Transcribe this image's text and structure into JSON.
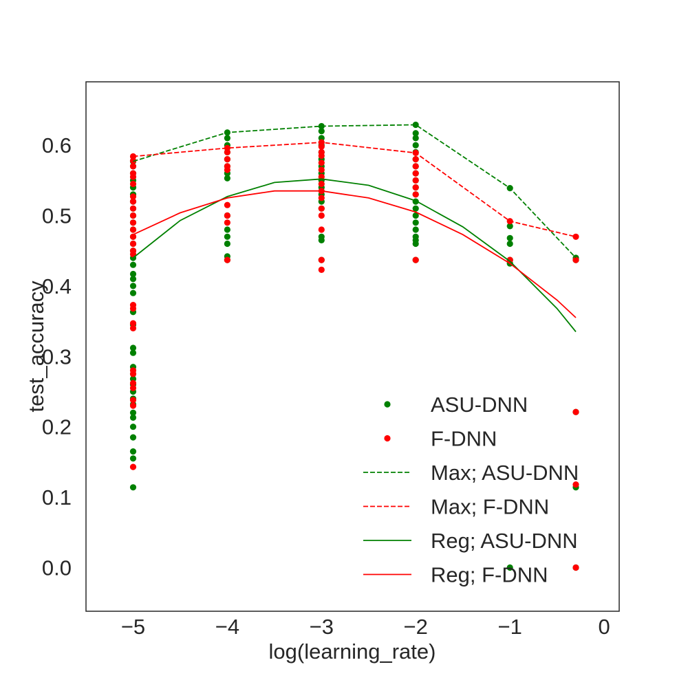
{
  "chart_data": {
    "type": "scatter",
    "title": "",
    "xlabel": "log(learning_rate)",
    "ylabel": "test_accuracy",
    "xlim": [
      -5.5,
      0.16
    ],
    "ylim": [
      -0.062,
      0.69
    ],
    "grid": false,
    "x_ticks": [
      -5,
      -4,
      -3,
      -2,
      -1,
      0
    ],
    "x_tick_labels": [
      "−5",
      "−4",
      "−3",
      "−2",
      "−1",
      "0"
    ],
    "y_ticks": [
      0.0,
      0.1,
      0.2,
      0.3,
      0.4,
      0.5,
      0.6
    ],
    "y_tick_labels": [
      "0.0",
      "0.1",
      "0.2",
      "0.3",
      "0.4",
      "0.5",
      "0.6"
    ],
    "legend_position": "lower-right",
    "legend": [
      {
        "label": "ASU-DNN",
        "kind": "marker",
        "color": "#008000"
      },
      {
        "label": "F-DNN",
        "kind": "marker",
        "color": "#ff0000"
      },
      {
        "label": "Max; ASU-DNN",
        "kind": "dashed",
        "color": "#008000"
      },
      {
        "label": "Max; F-DNN",
        "kind": "dashed",
        "color": "#ff0000"
      },
      {
        "label": "Reg; ASU-DNN",
        "kind": "solid",
        "color": "#008000"
      },
      {
        "label": "Reg; F-DNN",
        "kind": "solid",
        "color": "#ff0000"
      }
    ],
    "series": [
      {
        "name": "ASU-DNN",
        "type": "scatter",
        "color": "#008000",
        "points": [
          [
            -5,
            0.577
          ],
          [
            -5,
            0.57
          ],
          [
            -5,
            0.56
          ],
          [
            -5,
            0.55
          ],
          [
            -5,
            0.54
          ],
          [
            -5,
            0.53
          ],
          [
            -5,
            0.52
          ],
          [
            -5,
            0.51
          ],
          [
            -5,
            0.5
          ],
          [
            -5,
            0.49
          ],
          [
            -5,
            0.48
          ],
          [
            -5,
            0.47
          ],
          [
            -5,
            0.46
          ],
          [
            -5,
            0.45
          ],
          [
            -5,
            0.44
          ],
          [
            -5,
            0.43
          ],
          [
            -5,
            0.417
          ],
          [
            -5,
            0.41
          ],
          [
            -5,
            0.4
          ],
          [
            -5,
            0.39
          ],
          [
            -5,
            0.363
          ],
          [
            -5,
            0.345
          ],
          [
            -5,
            0.312
          ],
          [
            -5,
            0.305
          ],
          [
            -5,
            0.285
          ],
          [
            -5,
            0.275
          ],
          [
            -5,
            0.268
          ],
          [
            -5,
            0.26
          ],
          [
            -5,
            0.25
          ],
          [
            -5,
            0.24
          ],
          [
            -5,
            0.232
          ],
          [
            -5,
            0.22
          ],
          [
            -5,
            0.213
          ],
          [
            -5,
            0.2
          ],
          [
            -5,
            0.185
          ],
          [
            -5,
            0.165
          ],
          [
            -5,
            0.155
          ],
          [
            -5,
            0.114
          ],
          [
            -4,
            0.618
          ],
          [
            -4,
            0.61
          ],
          [
            -4,
            0.6
          ],
          [
            -4,
            0.59
          ],
          [
            -4,
            0.58
          ],
          [
            -4,
            0.57
          ],
          [
            -4,
            0.56
          ],
          [
            -4,
            0.553
          ],
          [
            -4,
            0.5
          ],
          [
            -4,
            0.48
          ],
          [
            -4,
            0.47
          ],
          [
            -4,
            0.46
          ],
          [
            -4,
            0.442
          ],
          [
            -4,
            0.437
          ],
          [
            -3,
            0.627
          ],
          [
            -3,
            0.62
          ],
          [
            -3,
            0.61
          ],
          [
            -3,
            0.6
          ],
          [
            -3,
            0.59
          ],
          [
            -3,
            0.58
          ],
          [
            -3,
            0.57
          ],
          [
            -3,
            0.56
          ],
          [
            -3,
            0.55
          ],
          [
            -3,
            0.54
          ],
          [
            -3,
            0.53
          ],
          [
            -3,
            0.52
          ],
          [
            -3,
            0.51
          ],
          [
            -3,
            0.47
          ],
          [
            -3,
            0.465
          ],
          [
            -3,
            0.437
          ],
          [
            -2,
            0.629
          ],
          [
            -2,
            0.617
          ],
          [
            -2,
            0.61
          ],
          [
            -2,
            0.6
          ],
          [
            -2,
            0.59
          ],
          [
            -2,
            0.58
          ],
          [
            -2,
            0.57
          ],
          [
            -2,
            0.56
          ],
          [
            -2,
            0.55
          ],
          [
            -2,
            0.54
          ],
          [
            -2,
            0.53
          ],
          [
            -2,
            0.52
          ],
          [
            -2,
            0.51
          ],
          [
            -2,
            0.5
          ],
          [
            -2,
            0.49
          ],
          [
            -2,
            0.48
          ],
          [
            -2,
            0.47
          ],
          [
            -2,
            0.465
          ],
          [
            -2,
            0.46
          ],
          [
            -2,
            0.437
          ],
          [
            -1,
            0.539
          ],
          [
            -1,
            0.485
          ],
          [
            -1,
            0.468
          ],
          [
            -1,
            0.46
          ],
          [
            -1,
            0.437
          ],
          [
            -1,
            0.432
          ],
          [
            -1,
            0.0
          ],
          [
            -0.3,
            0.44
          ],
          [
            -0.3,
            0.437
          ],
          [
            -0.3,
            0.221
          ],
          [
            -0.3,
            0.114
          ],
          [
            -0.3,
            0.0
          ]
        ]
      },
      {
        "name": "F-DNN",
        "type": "scatter",
        "color": "#ff0000",
        "points": [
          [
            -5,
            0.584
          ],
          [
            -5,
            0.578
          ],
          [
            -5,
            0.57
          ],
          [
            -5,
            0.56
          ],
          [
            -5,
            0.555
          ],
          [
            -5,
            0.545
          ],
          [
            -5,
            0.527
          ],
          [
            -5,
            0.52
          ],
          [
            -5,
            0.51
          ],
          [
            -5,
            0.5
          ],
          [
            -5,
            0.49
          ],
          [
            -5,
            0.48
          ],
          [
            -5,
            0.47
          ],
          [
            -5,
            0.46
          ],
          [
            -5,
            0.45
          ],
          [
            -5,
            0.445
          ],
          [
            -5,
            0.373
          ],
          [
            -5,
            0.368
          ],
          [
            -5,
            0.347
          ],
          [
            -5,
            0.34
          ],
          [
            -5,
            0.28
          ],
          [
            -5,
            0.275
          ],
          [
            -5,
            0.262
          ],
          [
            -5,
            0.255
          ],
          [
            -5,
            0.238
          ],
          [
            -5,
            0.23
          ],
          [
            -5,
            0.143
          ],
          [
            -4,
            0.596
          ],
          [
            -4,
            0.59
          ],
          [
            -4,
            0.58
          ],
          [
            -4,
            0.57
          ],
          [
            -4,
            0.565
          ],
          [
            -4,
            0.515
          ],
          [
            -4,
            0.5
          ],
          [
            -4,
            0.49
          ],
          [
            -4,
            0.437
          ],
          [
            -3,
            0.604
          ],
          [
            -3,
            0.598
          ],
          [
            -3,
            0.59
          ],
          [
            -3,
            0.585
          ],
          [
            -3,
            0.575
          ],
          [
            -3,
            0.565
          ],
          [
            -3,
            0.555
          ],
          [
            -3,
            0.545
          ],
          [
            -3,
            0.535
          ],
          [
            -3,
            0.525
          ],
          [
            -3,
            0.51
          ],
          [
            -3,
            0.5
          ],
          [
            -3,
            0.48
          ],
          [
            -3,
            0.437
          ],
          [
            -3,
            0.423
          ],
          [
            -2,
            0.589
          ],
          [
            -2,
            0.58
          ],
          [
            -2,
            0.57
          ],
          [
            -2,
            0.56
          ],
          [
            -2,
            0.55
          ],
          [
            -2,
            0.54
          ],
          [
            -2,
            0.53
          ],
          [
            -2,
            0.437
          ],
          [
            -1,
            0.492
          ],
          [
            -1,
            0.437
          ],
          [
            -0.3,
            0.47
          ],
          [
            -0.3,
            0.437
          ],
          [
            -0.3,
            0.221
          ],
          [
            -0.3,
            0.118
          ],
          [
            -0.3,
            0.0
          ]
        ]
      },
      {
        "name": "Max; ASU-DNN",
        "type": "line",
        "style": "dashed",
        "color": "#008000",
        "x": [
          -5,
          -4,
          -3,
          -2,
          -1,
          -0.3
        ],
        "y": [
          0.577,
          0.618,
          0.627,
          0.629,
          0.539,
          0.44
        ]
      },
      {
        "name": "Max; F-DNN",
        "type": "line",
        "style": "dashed",
        "color": "#ff0000",
        "x": [
          -5,
          -4,
          -3,
          -2,
          -1,
          -0.3
        ],
        "y": [
          0.584,
          0.596,
          0.604,
          0.589,
          0.492,
          0.47
        ]
      },
      {
        "name": "Reg; ASU-DNN",
        "type": "line",
        "style": "solid",
        "color": "#008000",
        "x": [
          -5,
          -4.5,
          -4,
          -3.5,
          -3,
          -2.5,
          -2,
          -1.5,
          -1,
          -0.5,
          -0.3
        ],
        "y": [
          0.44,
          0.493,
          0.527,
          0.547,
          0.552,
          0.543,
          0.521,
          0.484,
          0.435,
          0.368,
          0.335
        ]
      },
      {
        "name": "Reg; F-DNN",
        "type": "line",
        "style": "solid",
        "color": "#ff0000",
        "x": [
          -5,
          -4.5,
          -4,
          -3.5,
          -3,
          -2.5,
          -2,
          -1.5,
          -1,
          -0.5,
          -0.3
        ],
        "y": [
          0.473,
          0.504,
          0.525,
          0.535,
          0.535,
          0.525,
          0.505,
          0.473,
          0.432,
          0.38,
          0.355
        ]
      }
    ]
  }
}
